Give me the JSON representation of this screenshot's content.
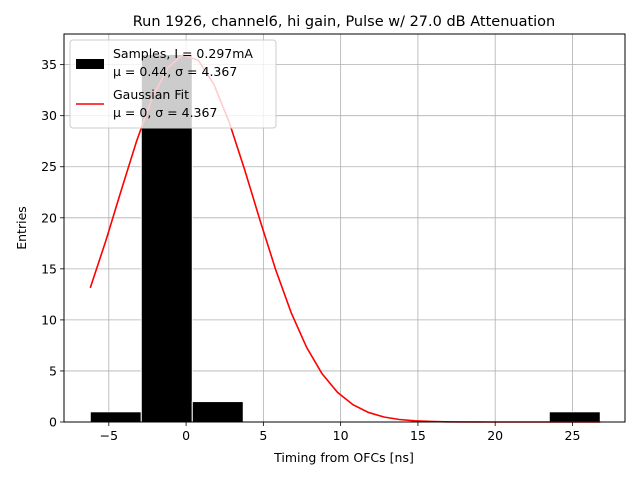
{
  "chart_data": {
    "type": "bar",
    "title": "Run 1926, channel6, hi gain, Pulse w/ 27.0 dB Attenuation",
    "xlabel": "Timing from OFCs [ns]",
    "ylabel": "Entries",
    "xlim": [
      -7.9,
      28.4
    ],
    "ylim": [
      0,
      38
    ],
    "xticks": [
      -5,
      0,
      5,
      10,
      15,
      20,
      25
    ],
    "yticks": [
      0,
      5,
      10,
      15,
      20,
      25,
      30,
      35
    ],
    "grid": true,
    "legend_position": "top-left",
    "histogram": {
      "name": "Samples, I = 0.297mA",
      "stats": "μ = 0.44, σ = 4.367",
      "color": "#000000",
      "edge_color": "#ffffff",
      "bins": [
        {
          "left": -6.2,
          "right": -2.9,
          "count": 1
        },
        {
          "left": -2.9,
          "right": 0.4,
          "count": 36
        },
        {
          "left": 0.4,
          "right": 3.7,
          "count": 2
        },
        {
          "left": 23.5,
          "right": 26.8,
          "count": 1
        }
      ]
    },
    "fit": {
      "name": "Gaussian Fit",
      "stats": "μ = 0, σ = 4.367",
      "color": "#ff0000",
      "mu": 0,
      "sigma": 4.367,
      "amplitude": 36,
      "x_range": [
        -6.2,
        26.8
      ]
    }
  }
}
